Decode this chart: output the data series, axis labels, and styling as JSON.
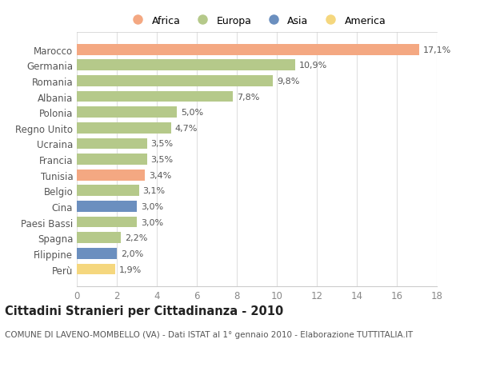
{
  "categories": [
    "Marocco",
    "Germania",
    "Romania",
    "Albania",
    "Polonia",
    "Regno Unito",
    "Ucraina",
    "Francia",
    "Tunisia",
    "Belgio",
    "Cina",
    "Paesi Bassi",
    "Spagna",
    "Filippine",
    "Perù"
  ],
  "values": [
    17.1,
    10.9,
    9.8,
    7.8,
    5.0,
    4.7,
    3.5,
    3.5,
    3.4,
    3.1,
    3.0,
    3.0,
    2.2,
    2.0,
    1.9
  ],
  "labels": [
    "17,1%",
    "10,9%",
    "9,8%",
    "7,8%",
    "5,0%",
    "4,7%",
    "3,5%",
    "3,5%",
    "3,4%",
    "3,1%",
    "3,0%",
    "3,0%",
    "2,2%",
    "2,0%",
    "1,9%"
  ],
  "continents": [
    "Africa",
    "Europa",
    "Europa",
    "Europa",
    "Europa",
    "Europa",
    "Europa",
    "Europa",
    "Africa",
    "Europa",
    "Asia",
    "Europa",
    "Europa",
    "Asia",
    "America"
  ],
  "continent_colors": {
    "Africa": "#F4A882",
    "Europa": "#B5C98A",
    "Asia": "#6B8FBF",
    "America": "#F5D77E"
  },
  "title": "Cittadini Stranieri per Cittadinanza - 2010",
  "subtitle": "COMUNE DI LAVENO-MOMBELLO (VA) - Dati ISTAT al 1° gennaio 2010 - Elaborazione TUTTITALIA.IT",
  "xlim": [
    0,
    18
  ],
  "xticks": [
    0,
    2,
    4,
    6,
    8,
    10,
    12,
    14,
    16,
    18
  ],
  "background_color": "#FFFFFF",
  "plot_background": "#FFFFFF",
  "grid_color": "#E0E0E0",
  "bar_height": 0.7,
  "label_fontsize": 8,
  "title_fontsize": 10.5,
  "subtitle_fontsize": 7.5,
  "tick_fontsize": 8.5,
  "legend_order": [
    "Africa",
    "Europa",
    "Asia",
    "America"
  ]
}
